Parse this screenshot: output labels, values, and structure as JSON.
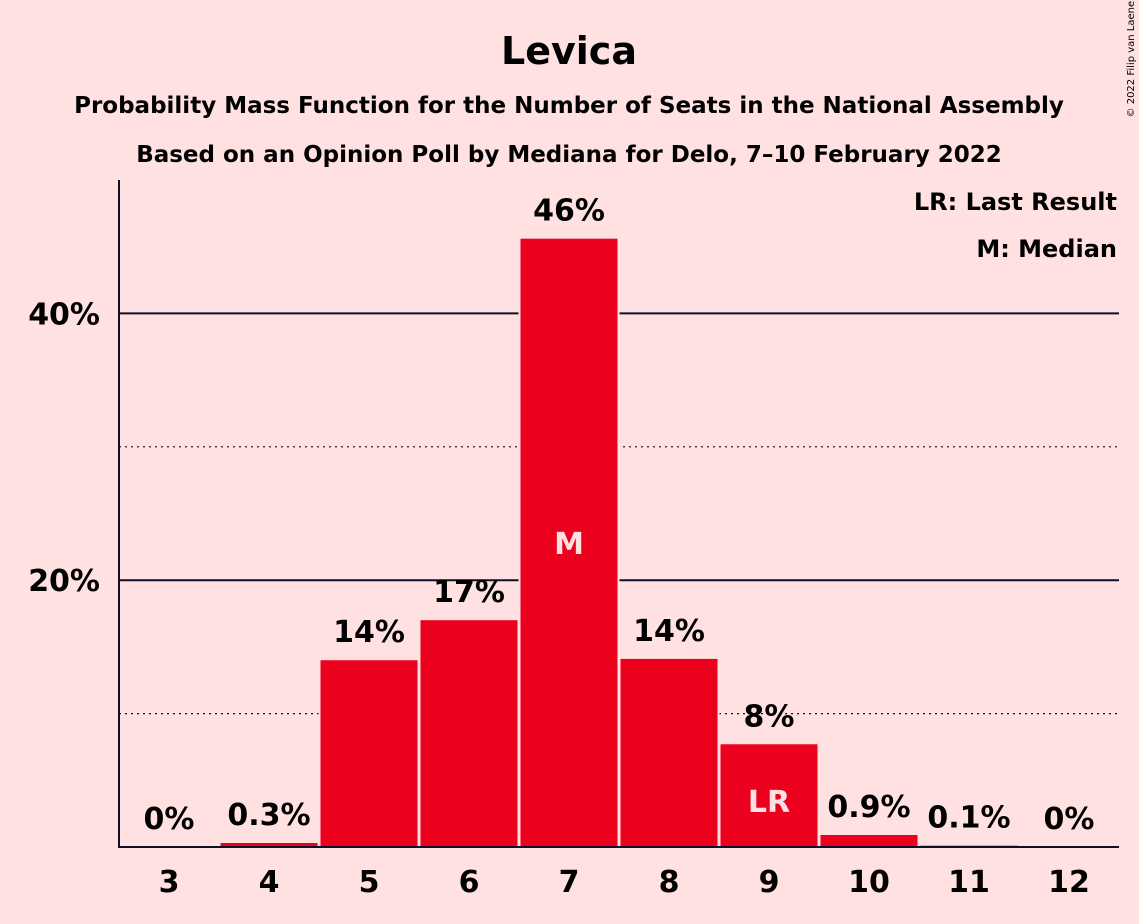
{
  "chart_data": {
    "type": "bar",
    "title": "Levica",
    "subtitle": "Probability Mass Function for the Number of Seats in the National Assembly",
    "subtitle2": "Based on an Opinion Poll by Mediana for Delo, 7–10 February 2022",
    "copyright": "© 2022 Filip van Laenen",
    "categories": [
      "3",
      "4",
      "5",
      "6",
      "7",
      "8",
      "9",
      "10",
      "11",
      "12"
    ],
    "values": [
      0,
      0.3,
      14,
      17,
      45.6,
      14.1,
      7.7,
      0.9,
      0.1,
      0
    ],
    "value_labels": [
      "0%",
      "0.3%",
      "14%",
      "17%",
      "46%",
      "14%",
      "8%",
      "0.9%",
      "0.1%",
      "0%"
    ],
    "ylim": [
      0,
      50
    ],
    "yticks": [
      {
        "value": 20,
        "label": "20%"
      },
      {
        "value": 40,
        "label": "40%"
      }
    ],
    "minor_gridlines": [
      10,
      30
    ],
    "median_category": "7",
    "median_marker": "M",
    "last_result_category": "9",
    "last_result_marker": "LR",
    "bar_color": "#EB001E",
    "legend": {
      "placement": "top-right",
      "entries": [
        "LR: Last Result",
        "M: Median"
      ]
    }
  }
}
